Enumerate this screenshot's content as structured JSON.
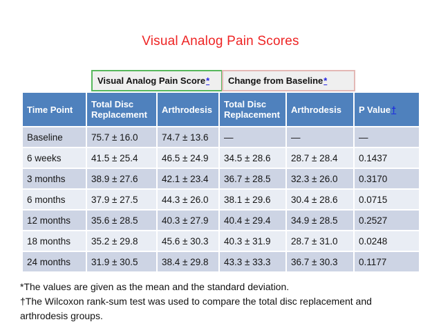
{
  "title": "Visual Analog Pain Scores",
  "colors": {
    "title_red": "#ee2424",
    "header_blue": "#4f81bd",
    "row_dark": "#cdd4e4",
    "row_light": "#e9edf4",
    "band_fill": "#efefef",
    "band_border_green": "#56b75c",
    "band_border_pink": "#e3b8b5",
    "link_blue": "#2222e0"
  },
  "span_header": {
    "cells": [
      {
        "label": "Visual Analog Pain Score",
        "marker": "*"
      },
      {
        "label": "Change from Baseline",
        "marker": "*"
      }
    ]
  },
  "table": {
    "columns": [
      {
        "label": "Time Point",
        "marker": ""
      },
      {
        "label": "Total Disc Replacement",
        "marker": ""
      },
      {
        "label": "Arthrodesis",
        "marker": ""
      },
      {
        "label": "Total Disc Replacement",
        "marker": ""
      },
      {
        "label": "Arthrodesis",
        "marker": ""
      },
      {
        "label": "P Value",
        "marker": "†"
      }
    ],
    "rows": [
      [
        "Baseline",
        "75.7 ± 16.0",
        "74.7 ± 13.6",
        "—",
        "—",
        "—"
      ],
      [
        "6 weeks",
        "41.5 ± 25.4",
        "46.5 ± 24.9",
        "34.5 ± 28.6",
        "28.7 ± 28.4",
        "0.1437"
      ],
      [
        "3 months",
        "38.9 ± 27.6",
        "42.1 ± 23.4",
        "36.7 ± 28.5",
        "32.3 ± 26.0",
        "0.3170"
      ],
      [
        "6 months",
        "37.9 ± 27.5",
        "44.3 ± 26.0",
        "38.1 ± 29.6",
        "30.4 ± 28.6",
        "0.0715"
      ],
      [
        "12 months",
        "35.6 ± 28.5",
        "40.3 ± 27.9",
        "40.4 ± 29.4",
        "34.9 ± 28.5",
        "0.2527"
      ],
      [
        "18 months",
        "35.2 ± 29.8",
        "45.6 ± 30.3",
        "40.3 ± 31.9",
        "28.7 ± 31.0",
        "0.0248"
      ],
      [
        "24 months",
        "31.9 ± 30.5",
        "38.4 ± 29.8",
        "43.3 ± 33.3",
        "36.7 ± 30.3",
        "0.1177"
      ]
    ]
  },
  "footnotes": [
    "*The values are given as the mean and the standard deviation.",
    "†The Wilcoxon rank-sum test was used to compare the total disc replacement and arthrodesis groups."
  ]
}
